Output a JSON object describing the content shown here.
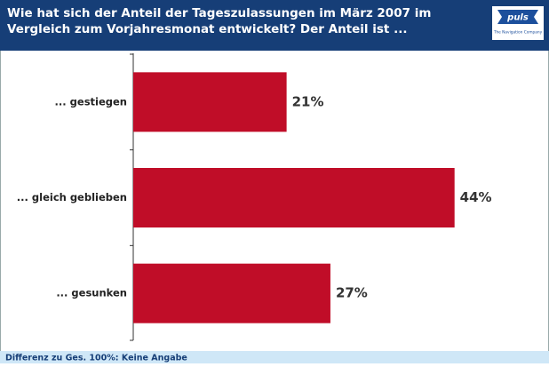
{
  "chart_data": {
    "type": "bar",
    "orientation": "horizontal",
    "title": "Wie hat sich der Anteil der Tageszulassungen im März 2007 im Vergleich zum Vorjahresmonat entwickelt? Der Anteil ist ...",
    "categories": [
      "... gestiegen",
      "... gleich geblieben",
      "... gesunken"
    ],
    "values": [
      21,
      44,
      27
    ],
    "value_labels": [
      "21%",
      "44%",
      "27%"
    ],
    "color": "#c00d28",
    "footnote": "Differenz zu Ges. 100%: Keine Angabe",
    "logo": {
      "name": "puls",
      "tagline": "The Navigation Company"
    }
  }
}
